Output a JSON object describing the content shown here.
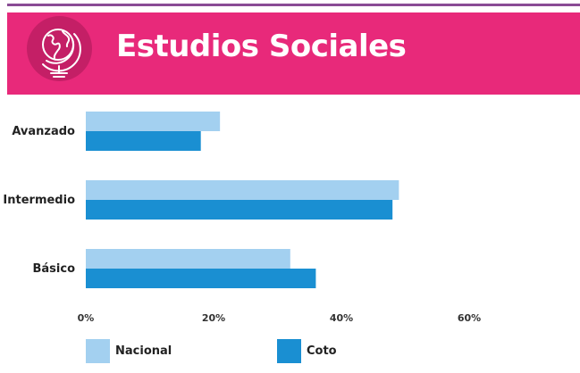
{
  "header": {
    "title": "Estudios Sociales",
    "icon": "globe-icon"
  },
  "colors": {
    "banner": "#e8297a",
    "banner_circle": "#c41f66",
    "top_rule": "#8a4c95",
    "nacional": "#a3d0f0",
    "coto": "#1a8fd2"
  },
  "chart_data": {
    "type": "bar",
    "orientation": "horizontal",
    "categories": [
      "Avanzado",
      "Intermedio",
      "Básico"
    ],
    "series": [
      {
        "name": "Nacional",
        "color": "#a3d0f0",
        "values": [
          21,
          49,
          32
        ]
      },
      {
        "name": "Coto",
        "color": "#1a8fd2",
        "values": [
          18,
          48,
          36
        ]
      }
    ],
    "xlim": [
      0,
      60
    ],
    "xticks": [
      "0%",
      "20%",
      "40%",
      "60%"
    ],
    "grid": false,
    "legend": "bottom"
  }
}
